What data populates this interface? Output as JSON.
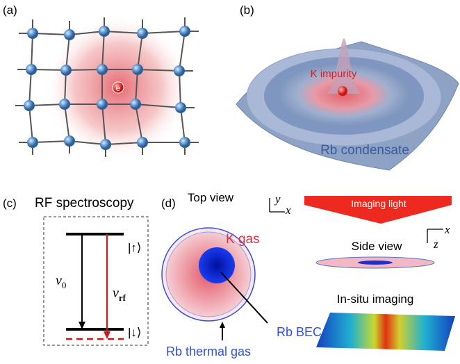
{
  "panels": {
    "a": {
      "label": "(a)",
      "electron": "e"
    },
    "b": {
      "label": "(b)",
      "impurity": "K impurity",
      "condensate": "Rb condensate"
    },
    "c": {
      "label": "(c)",
      "title": "RF spectroscopy",
      "state_up": "|↑⟩",
      "state_down": "|↓⟩",
      "nu0": {
        "symbol": "ν",
        "subscript": "0"
      },
      "nurf": {
        "symbol": "ν",
        "subscript": "rf"
      }
    },
    "d": {
      "label": "(d)",
      "top_view": "Top view",
      "axis_y": "y",
      "axis_x": "x",
      "imaging_light": "Imaging light",
      "k_gas": "K gas",
      "rb_bec": "Rb BEC",
      "rb_thermal": "Rb thermal gas",
      "side_view": "Side view",
      "axis_z": "z",
      "axis_x2": "x",
      "in_situ": "In-situ imaging"
    }
  }
}
